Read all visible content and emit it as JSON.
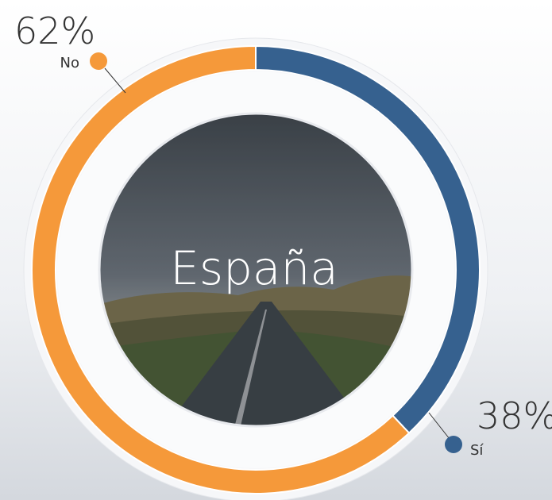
{
  "chart_data": {
    "type": "donut",
    "center_label": "España",
    "categories": [
      "Sí",
      "No"
    ],
    "values": [
      38,
      62
    ],
    "value_labels": [
      "38%",
      "62%"
    ],
    "colors": [
      "#36618f",
      "#f5993a"
    ]
  }
}
